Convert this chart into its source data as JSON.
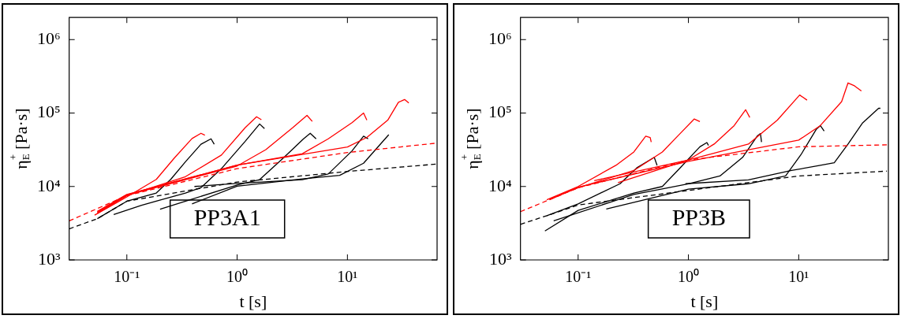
{
  "chart_data": [
    {
      "type": "line",
      "xlabel": "t [s]",
      "ylabel": "η$_{E}$$^{+}$ [Pa·s]",
      "log": "xy",
      "grid": false,
      "marker": "none",
      "annotations": [
        "PP3A1"
      ],
      "xlim": [
        0.03,
        65
      ],
      "ylim": [
        1000,
        2000000
      ],
      "xticks": [
        {
          "value": 0.1,
          "label": "10⁻¹"
        },
        {
          "value": 1,
          "label": "10⁰"
        },
        {
          "value": 10,
          "label": "10¹"
        }
      ],
      "yticks": [
        {
          "value": 1000,
          "label": "10³"
        },
        {
          "value": 10000,
          "label": "10⁴"
        },
        {
          "value": 100000,
          "label": "10⁵"
        },
        {
          "value": 1000000,
          "label": "10⁶"
        }
      ],
      "series": [
        {
          "color": "#ff0000",
          "line_style": "dashed",
          "x": [
            0.03,
            0.1,
            1,
            10,
            65
          ],
          "values": [
            3400,
            7500,
            17500,
            29000,
            39000
          ]
        },
        {
          "color": "#000000",
          "line_style": "dashed",
          "x": [
            0.03,
            0.054,
            0.1,
            1,
            10,
            65
          ],
          "values": [
            2650,
            3640,
            6300,
            11500,
            16000,
            20200
          ]
        },
        {
          "color": "#ff0000",
          "line_style": "solid",
          "x": [
            0.051,
            0.1,
            0.185,
            0.27,
            0.39,
            0.47,
            0.51
          ],
          "values": [
            4070,
            7200,
            12500,
            24500,
            45000,
            53000,
            50000
          ]
        },
        {
          "color": "#ff0000",
          "line_style": "solid",
          "x": [
            0.054,
            0.1,
            0.34,
            0.72,
            1.18,
            1.5,
            1.66
          ],
          "values": [
            4300,
            7500,
            13600,
            26800,
            63000,
            89000,
            81000
          ]
        },
        {
          "color": "#ff0000",
          "line_style": "solid",
          "x": [
            0.054,
            0.1,
            1,
            1.82,
            3.18,
            4.3,
            4.8
          ],
          "values": [
            4400,
            7600,
            19000,
            31700,
            63000,
            93000,
            77000
          ]
        },
        {
          "color": "#ff0000",
          "line_style": "solid",
          "x": [
            0.054,
            0.1,
            1,
            3.9,
            6.7,
            11,
            14,
            15
          ],
          "values": [
            4500,
            7700,
            19500,
            28000,
            44600,
            74000,
            100000,
            80000
          ]
        },
        {
          "color": "#ff0000",
          "line_style": "solid",
          "x": [
            0.054,
            0.1,
            1,
            10,
            15,
            23.2,
            29,
            33,
            36
          ],
          "values": [
            4600,
            7800,
            19500,
            34500,
            46500,
            80000,
            140000,
            153000,
            137000
          ]
        },
        {
          "color": "#000000",
          "line_style": "solid",
          "x": [
            0.054,
            0.1,
            0.185,
            0.25,
            0.34,
            0.47,
            0.58,
            0.62
          ],
          "values": [
            3640,
            6300,
            8150,
            12500,
            21700,
            37600,
            44600,
            37600
          ]
        },
        {
          "color": "#000000",
          "line_style": "solid",
          "x": [
            0.076,
            0.136,
            0.34,
            0.47,
            0.72,
            1.18,
            1.6,
            1.77
          ],
          "values": [
            4140,
            5560,
            8150,
            9660,
            17500,
            41000,
            71000,
            61500
          ]
        },
        {
          "color": "#000000",
          "line_style": "solid",
          "x": [
            0.2,
            1,
            1.6,
            2.64,
            4,
            4.6,
            5.2
          ],
          "values": [
            4900,
            10500,
            12400,
            24600,
            44600,
            53000,
            44600
          ]
        },
        {
          "color": "#000000",
          "line_style": "solid",
          "x": [
            0.41,
            1,
            3.9,
            6.7,
            11,
            14,
            15.4
          ],
          "values": [
            10000,
            11000,
            12400,
            14800,
            30500,
            48500,
            44600
          ]
        },
        {
          "color": "#000000",
          "line_style": "solid",
          "x": [
            0.39,
            1,
            3.9,
            8.5,
            14,
            23.7
          ],
          "values": [
            5800,
            10100,
            12700,
            14200,
            20700,
            50700
          ]
        }
      ]
    },
    {
      "type": "line",
      "xlabel": "t [s]",
      "ylabel": "η$_{E}$$^{+}$ [Pa·s]",
      "log": "xy",
      "grid": false,
      "marker": "none",
      "annotations": [
        "PP3B"
      ],
      "xlim": [
        0.03,
        65
      ],
      "ylim": [
        1000,
        2000000
      ],
      "xticks": [
        {
          "value": 0.1,
          "label": "10⁻¹"
        },
        {
          "value": 1,
          "label": "10⁰"
        },
        {
          "value": 10,
          "label": "10¹"
        }
      ],
      "yticks": [
        {
          "value": 1000,
          "label": "10³"
        },
        {
          "value": 10000,
          "label": "10⁴"
        },
        {
          "value": 100000,
          "label": "10⁵"
        },
        {
          "value": 1000000,
          "label": "10⁶"
        }
      ],
      "series": [
        {
          "color": "#ff0000",
          "line_style": "dashed",
          "x": [
            0.03,
            0.1,
            1,
            10,
            63
          ],
          "values": [
            4540,
            9600,
            23000,
            34700,
            36900
          ]
        },
        {
          "color": "#000000",
          "line_style": "dashed",
          "x": [
            0.03,
            0.052,
            0.1,
            1,
            10,
            63
          ],
          "values": [
            3050,
            4000,
            5600,
            8830,
            13900,
            16200
          ]
        },
        {
          "color": "#ff0000",
          "line_style": "solid",
          "x": [
            0.052,
            0.1,
            0.22,
            0.32,
            0.41,
            0.45,
            0.46
          ],
          "values": [
            6600,
            10000,
            19400,
            29500,
            48500,
            46500,
            40300
          ]
        },
        {
          "color": "#ff0000",
          "line_style": "solid",
          "x": [
            0.055,
            0.1,
            0.32,
            0.58,
            0.84,
            1.13,
            1.27
          ],
          "values": [
            6700,
            9600,
            16500,
            29500,
            52500,
            83000,
            76500
          ]
        },
        {
          "color": "#ff0000",
          "line_style": "solid",
          "x": [
            0.14,
            1,
            1.71,
            2.6,
            3.3,
            3.6
          ],
          "values": [
            12000,
            23000,
            37800,
            67500,
            111000,
            87000
          ]
        },
        {
          "color": "#ff0000",
          "line_style": "solid",
          "x": [
            0.23,
            1,
            3.5,
            6.4,
            10.2,
            11.9
          ],
          "values": [
            11300,
            23000,
            37800,
            80000,
            176000,
            150000
          ]
        },
        {
          "color": "#ff0000",
          "line_style": "solid",
          "x": [
            0.055,
            0.1,
            1,
            10,
            15.7,
            24.5,
            28,
            32,
            37
          ],
          "values": [
            6600,
            9800,
            22000,
            42800,
            67500,
            143000,
            257000,
            235000,
            200000
          ]
        },
        {
          "color": "#000000",
          "line_style": "solid",
          "x": [
            0.052,
            0.1,
            0.24,
            0.34,
            0.49,
            0.52
          ],
          "values": [
            4000,
            5800,
            10900,
            17900,
            24900,
            19400
          ]
        },
        {
          "color": "#000000",
          "line_style": "solid",
          "x": [
            0.05,
            0.1,
            0.32,
            0.58,
            0.84,
            1.27,
            1.47,
            1.52
          ],
          "values": [
            2480,
            4730,
            8120,
            10000,
            17900,
            34700,
            39600,
            36200
          ]
        },
        {
          "color": "#000000",
          "line_style": "solid",
          "x": [
            0.06,
            0.32,
            1,
            1.93,
            3.1,
            4.2,
            4.5,
            4.6
          ],
          "values": [
            3400,
            7790,
            10900,
            13900,
            24900,
            48500,
            52500,
            40300
          ]
        },
        {
          "color": "#000000",
          "line_style": "solid",
          "x": [
            0.18,
            1,
            3.5,
            7.6,
            10.5,
            14.4,
            15.7,
            17
          ],
          "values": [
            4930,
            9200,
            10900,
            13900,
            27200,
            59700,
            67500,
            57000
          ]
        },
        {
          "color": "#000000",
          "line_style": "solid",
          "x": [
            0.94,
            3.5,
            8.6,
            15.7,
            21,
            28,
            38,
            53,
            55
          ],
          "values": [
            10900,
            12300,
            16500,
            19400,
            21100,
            37800,
            73500,
            116000,
            116000
          ]
        }
      ]
    }
  ]
}
